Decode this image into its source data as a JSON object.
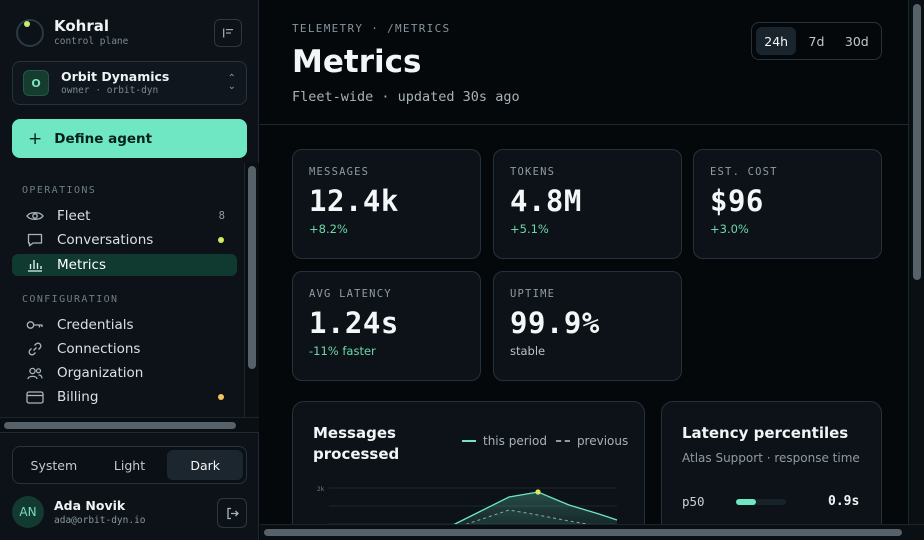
{
  "sidebar": {
    "brand": {
      "name": "Kohral",
      "subtitle": "control plane"
    },
    "org": {
      "initial": "O",
      "name": "Orbit Dynamics",
      "subtitle": "owner · orbit-dyn"
    },
    "define_agent_label": "Define agent",
    "sections": {
      "operations": "OPERATIONS",
      "configuration": "CONFIGURATION"
    },
    "items": [
      {
        "label": "Fleet",
        "icon": "eye-icon",
        "count": "8"
      },
      {
        "label": "Conversations",
        "icon": "chat-icon",
        "dot_color": "#d7ea5f"
      },
      {
        "label": "Metrics",
        "icon": "bar-chart-icon",
        "active": true
      },
      {
        "label": "Credentials",
        "icon": "key-icon"
      },
      {
        "label": "Connections",
        "icon": "link-icon"
      },
      {
        "label": "Organization",
        "icon": "users-icon"
      },
      {
        "label": "Billing",
        "icon": "card-icon",
        "dot_color": "#f4c460"
      }
    ],
    "theme": {
      "options": [
        "System",
        "Light",
        "Dark"
      ],
      "selected": "Dark"
    },
    "user": {
      "initials": "AN",
      "name": "Ada Novik",
      "email": "ada@orbit-dyn.io"
    }
  },
  "main": {
    "breadcrumb": "TELEMETRY · /METRICS",
    "title": "Metrics",
    "subtitle": "Fleet-wide · updated 30s ago",
    "range": {
      "options": [
        "24h",
        "7d",
        "30d"
      ],
      "selected": "24h"
    },
    "cards": [
      {
        "label": "MESSAGES",
        "value": "12.4k",
        "delta": "+8.2%"
      },
      {
        "label": "TOKENS",
        "value": "4.8M",
        "delta": "+5.1%"
      },
      {
        "label": "EST. COST",
        "value": "$96",
        "delta": "+3.0%"
      },
      {
        "label": "AVG LATENCY",
        "value": "1.24s",
        "delta": "-11% faster"
      },
      {
        "label": "UPTIME",
        "value": "99.9%",
        "delta": "stable"
      }
    ],
    "messages_panel": {
      "title_line1": "Messages",
      "title_line2": "processed",
      "legend_current": "this period",
      "legend_previous": "previous",
      "y_tick_label": "2k",
      "accent_color": "#6ee7c2",
      "highlight_color": "#d7ea5f"
    },
    "latency_panel": {
      "title": "Latency percentiles",
      "subtitle": "Atlas Support · response time",
      "rows": [
        {
          "label": "p50",
          "value": "0.9s",
          "fill_fraction": 0.4
        }
      ]
    }
  },
  "colors": {
    "accent": "#6ee7c2",
    "background": "#05080b",
    "sidebar_bg": "#0c1218",
    "active_nav_bg": "#103a30"
  }
}
